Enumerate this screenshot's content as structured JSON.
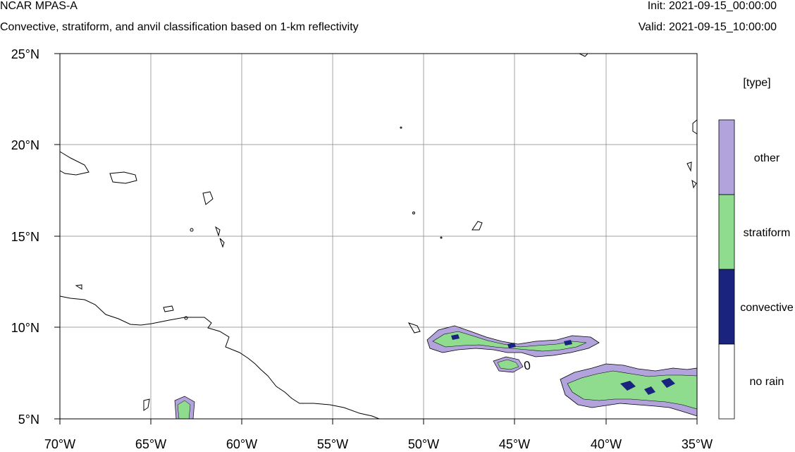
{
  "header": {
    "title": "NCAR MPAS-A",
    "subtitle": "Convective, stratiform, and anvil classification based on 1-km reflectivity",
    "init": "Init: 2021-09-15_00:00:00",
    "valid": "Valid: 2021-09-15_10:00:00"
  },
  "map": {
    "lon_labels": [
      "70°W",
      "65°W",
      "60°W",
      "55°W",
      "50°W",
      "45°W",
      "40°W",
      "35°W"
    ],
    "lat_labels": [
      "25°N",
      "20°N",
      "15°N",
      "10°N",
      "5°N"
    ],
    "lon_range": [
      -70,
      -35
    ],
    "lat_range": [
      5,
      25
    ],
    "grid": true,
    "contour_label": "0"
  },
  "legend": {
    "title": "[type]",
    "items": [
      {
        "label": "other",
        "color": "#b3a3dc"
      },
      {
        "label": "stratiform",
        "color": "#8fdc8f"
      },
      {
        "label": "convective",
        "color": "#1a237e"
      },
      {
        "label": "no rain",
        "color": "#ffffff"
      }
    ]
  }
}
